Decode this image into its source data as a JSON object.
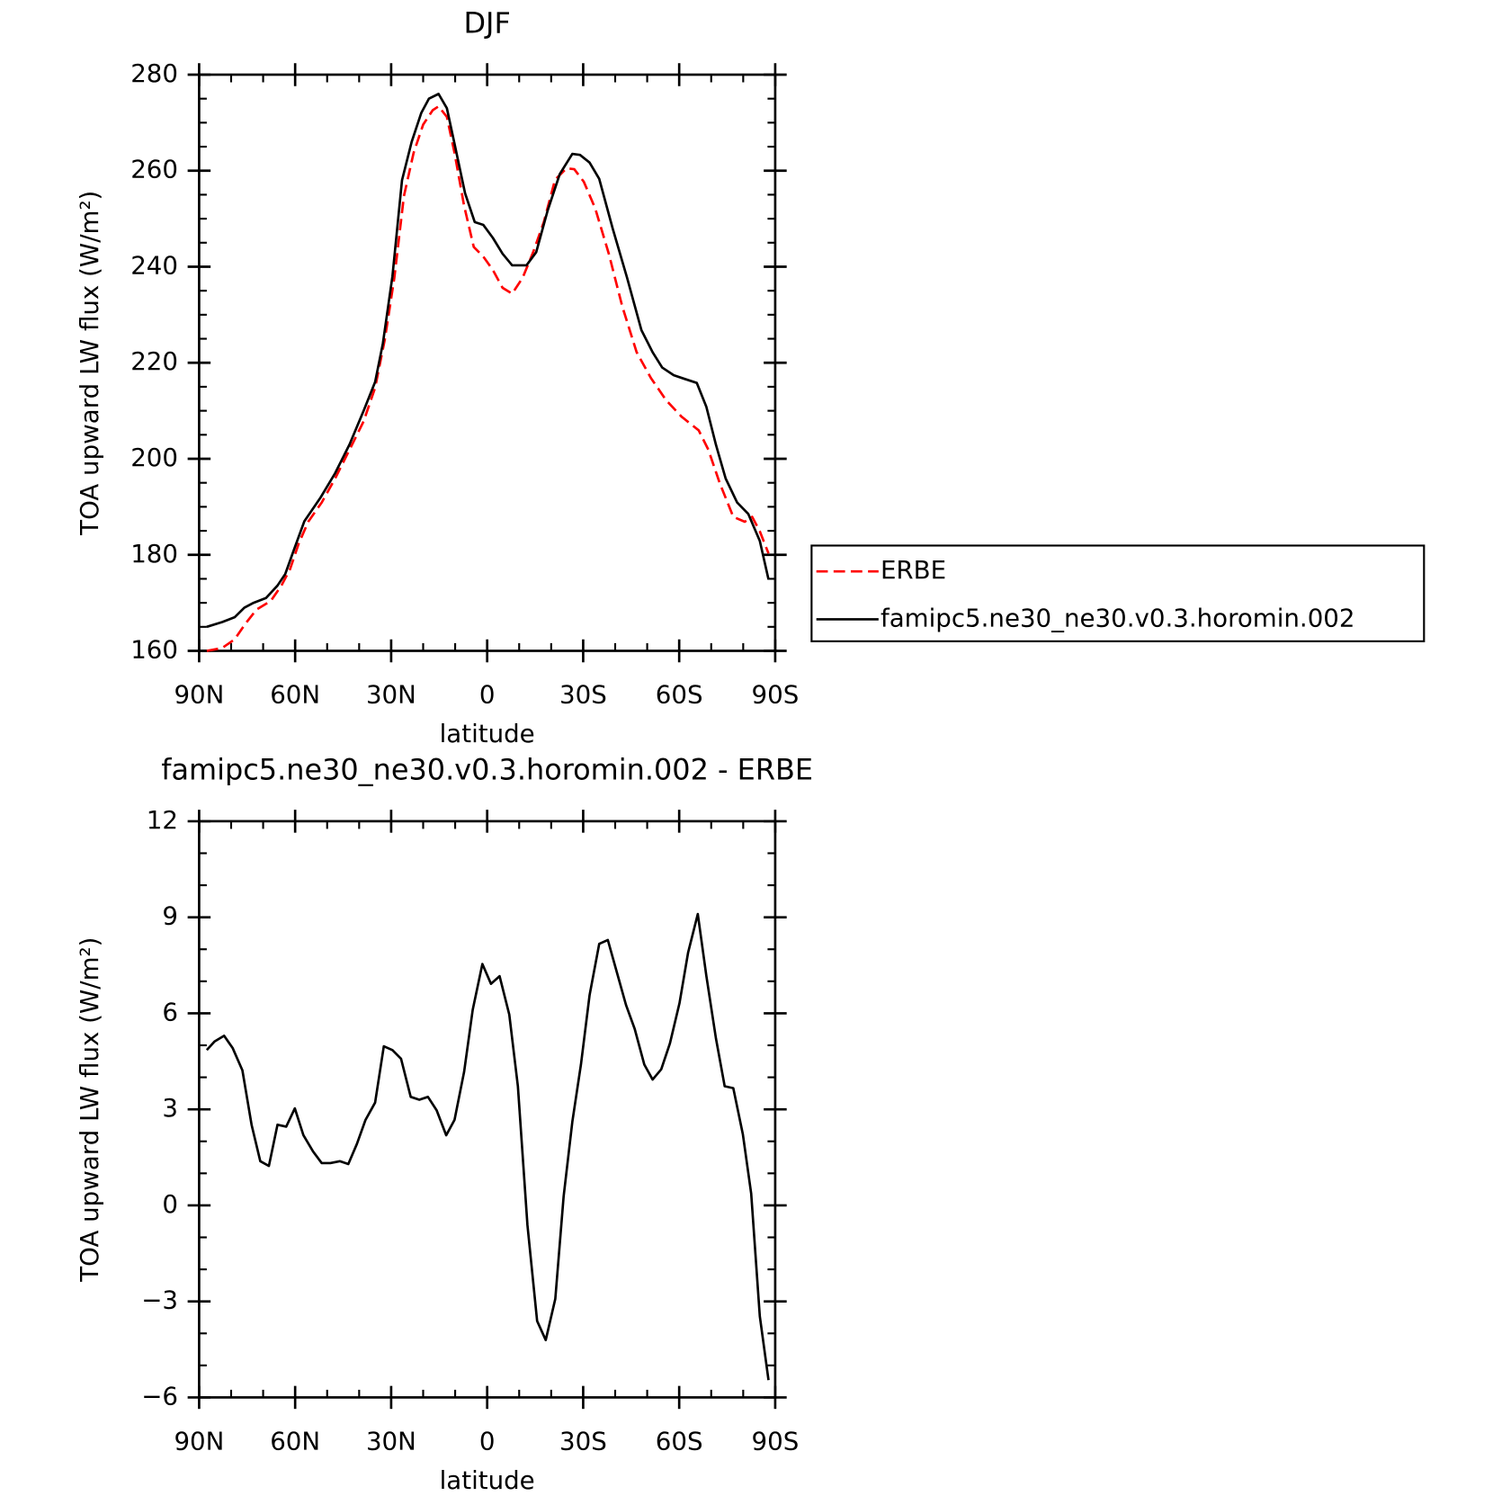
{
  "chart_data": [
    {
      "type": "line",
      "title": "DJF",
      "xlabel": "latitude",
      "ylabel": "TOA upward LW flux (W/m²)",
      "xlim": [
        90,
        -90
      ],
      "xticks": [
        {
          "value": 90,
          "label": "90N"
        },
        {
          "value": 60,
          "label": "60N"
        },
        {
          "value": 30,
          "label": "30N"
        },
        0,
        {
          "value": -30,
          "label": "30S"
        },
        {
          "value": -60,
          "label": "60S"
        },
        {
          "value": -90,
          "label": "90S"
        }
      ],
      "ylim": [
        160,
        280
      ],
      "yticks": [
        160,
        180,
        200,
        220,
        240,
        260,
        280
      ],
      "legend": "outside right",
      "series": [
        {
          "name": "ERBE",
          "color": "#ff0000",
          "dashed": true,
          "x": [
            87.6,
            82.8,
            78.9,
            75.6,
            72.1,
            67.6,
            64.3,
            61.6,
            58.9,
            55.9,
            51.7,
            47.5,
            43.0,
            38.6,
            35.0,
            32.0,
            29.0,
            26.0,
            23.0,
            20.0,
            17.0,
            15.2,
            12.6,
            10.2,
            7.2,
            4.2,
            1.2,
            -1.8,
            -4.8,
            -7.8,
            -11.1,
            -14.4,
            -17.7,
            -21.2,
            -24.8,
            -27.2,
            -30.2,
            -33.8,
            -38.0,
            -42.2,
            -46.7,
            -51.2,
            -55.9,
            -60.7,
            -66.1,
            -69.1,
            -72.7,
            -76.9,
            -80.5,
            -82.8,
            -85.2,
            -87.9
          ],
          "values": [
            160.0,
            160.6,
            162.4,
            165.6,
            168.6,
            170.4,
            173.6,
            177.0,
            182.3,
            186.9,
            190.9,
            195.9,
            201.9,
            207.8,
            214.8,
            224.8,
            237.7,
            254.7,
            263.7,
            269.6,
            272.6,
            273.4,
            271.2,
            263.7,
            252.7,
            244.1,
            242.1,
            239.3,
            235.6,
            234.4,
            237.7,
            243.1,
            249.3,
            258.1,
            260.5,
            260.3,
            257.7,
            252.1,
            242.7,
            231.8,
            222.2,
            216.8,
            212.2,
            208.8,
            205.9,
            201.9,
            194.9,
            187.9,
            186.9,
            187.9,
            184.9,
            180.3
          ]
        },
        {
          "name": "famipc5.ne30_ne30.v0.3.horomin.002",
          "color": "#000000",
          "dashed": false,
          "x": [
            87.6,
            82.8,
            78.9,
            75.9,
            73.0,
            69.1,
            65.5,
            63.1,
            60.4,
            57.1,
            52.0,
            47.5,
            43.0,
            38.6,
            35.0,
            32.6,
            29.6,
            26.6,
            23.6,
            20.6,
            18.2,
            15.2,
            12.6,
            10.2,
            6.9,
            3.9,
            1.2,
            -1.8,
            -4.8,
            -7.8,
            -12.3,
            -15.3,
            -18.9,
            -22.7,
            -26.6,
            -29.0,
            -32.0,
            -35.0,
            -39.2,
            -43.7,
            -48.2,
            -51.7,
            -54.7,
            -58.3,
            -61.9,
            -65.5,
            -68.5,
            -71.5,
            -74.5,
            -78.1,
            -81.6,
            -85.2,
            -87.9
          ],
          "values": [
            165.0,
            166.0,
            167.0,
            169.0,
            170.0,
            171.0,
            173.6,
            176.0,
            181.0,
            187.0,
            192.0,
            197.0,
            203.0,
            210.0,
            216.0,
            224.0,
            238.0,
            258.0,
            266.0,
            272.0,
            275.0,
            276.0,
            273.0,
            265.6,
            255.3,
            249.3,
            248.7,
            246.0,
            242.7,
            240.3,
            240.3,
            243.0,
            251.7,
            259.3,
            263.5,
            263.3,
            261.7,
            258.3,
            248.0,
            237.7,
            226.8,
            222.2,
            219.0,
            217.4,
            216.6,
            215.8,
            210.8,
            202.9,
            195.9,
            190.9,
            188.5,
            182.9,
            174.9
          ]
        }
      ]
    },
    {
      "type": "line",
      "title": "famipc5.ne30_ne30.v0.3.horomin.002 - ERBE",
      "xlabel": "latitude",
      "ylabel": "TOA upward LW flux (W/m²)",
      "xlim": [
        90,
        -90
      ],
      "xticks": [
        {
          "value": 90,
          "label": "90N"
        },
        {
          "value": 60,
          "label": "60N"
        },
        {
          "value": 30,
          "label": "30N"
        },
        0,
        {
          "value": -30,
          "label": "30S"
        },
        {
          "value": -60,
          "label": "60S"
        },
        {
          "value": -90,
          "label": "90S"
        }
      ],
      "ylim": [
        -6,
        12
      ],
      "yticks": [
        {
          "value": -6,
          "label": "−6"
        },
        {
          "value": -3,
          "label": "−3"
        },
        0,
        3,
        6,
        9,
        12
      ],
      "series": [
        {
          "color": "#000000",
          "dashed": false,
          "x": [
            87.6,
            85.2,
            82.2,
            79.5,
            76.5,
            73.6,
            70.9,
            68.2,
            65.5,
            62.8,
            60.1,
            57.4,
            54.4,
            51.7,
            49.0,
            46.0,
            43.4,
            40.7,
            38.0,
            35.0,
            32.3,
            29.6,
            26.9,
            23.9,
            21.2,
            18.5,
            15.8,
            12.8,
            10.2,
            7.2,
            4.5,
            1.5,
            -1.2,
            -3.9,
            -6.9,
            -9.6,
            -12.6,
            -15.6,
            -18.3,
            -21.3,
            -23.9,
            -26.6,
            -29.3,
            -32.0,
            -35.0,
            -37.7,
            -40.7,
            -43.4,
            -46.1,
            -49.1,
            -51.7,
            -54.4,
            -57.1,
            -60.1,
            -62.8,
            -65.8,
            -68.5,
            -71.5,
            -74.2,
            -76.9,
            -79.9,
            -82.5,
            -85.2,
            -87.9
          ],
          "values": [
            4.85,
            5.12,
            5.3,
            4.91,
            4.22,
            2.52,
            1.38,
            1.23,
            2.52,
            2.46,
            3.03,
            2.19,
            1.68,
            1.32,
            1.32,
            1.38,
            1.29,
            1.92,
            2.67,
            3.21,
            4.97,
            4.85,
            4.58,
            3.39,
            3.3,
            3.39,
            2.97,
            2.19,
            2.67,
            4.17,
            6.11,
            7.54,
            6.92,
            7.16,
            5.96,
            3.72,
            -0.62,
            -3.61,
            -4.21,
            -2.92,
            0.28,
            2.61,
            4.4,
            6.56,
            8.17,
            8.29,
            7.22,
            6.26,
            5.51,
            4.4,
            3.93,
            4.25,
            5.06,
            6.32,
            7.9,
            9.1,
            7.16,
            5.21,
            3.72,
            3.66,
            2.22,
            0.37,
            -3.46,
            -5.46
          ]
        }
      ]
    }
  ]
}
